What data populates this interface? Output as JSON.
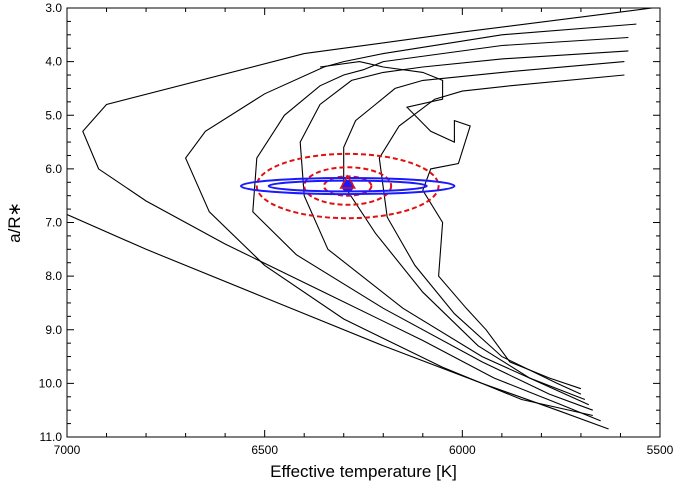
{
  "chart_data": {
    "type": "line",
    "title": "",
    "xlabel": "Effective temperature [K]",
    "ylabel": "a/R∗",
    "xlim": [
      7000,
      5500
    ],
    "ylim": [
      3.0,
      11.0
    ],
    "x_inverted": true,
    "y_inverted": true,
    "xticks": [
      "7000",
      "6500",
      "6000",
      "5500"
    ],
    "yticks": [
      "3.0",
      "4.0",
      "5.0",
      "6.0",
      "7.0",
      "8.0",
      "9.0",
      "10.0",
      "11.0"
    ],
    "grid": false,
    "colors": {
      "tracks": "#000000",
      "ellipse_inner": "#1a1aff",
      "ellipse_outer": "#e01010",
      "point": "#1a1aff"
    },
    "series": [
      {
        "points": [
          [
            7000,
            6.85
          ],
          [
            6800,
            7.5
          ],
          [
            6500,
            8.4
          ],
          [
            6200,
            9.3
          ],
          [
            5950,
            10.0
          ],
          [
            5760,
            10.5
          ],
          [
            5630,
            10.85
          ]
        ]
      },
      {
        "points": [
          [
            5520,
            3.0
          ],
          [
            6000,
            3.45
          ],
          [
            6400,
            3.85
          ],
          [
            6900,
            4.8
          ],
          [
            6960,
            5.3
          ],
          [
            6920,
            6.0
          ],
          [
            6800,
            6.6
          ],
          [
            6600,
            7.4
          ],
          [
            6350,
            8.3
          ],
          [
            6100,
            9.2
          ],
          [
            5920,
            9.9
          ],
          [
            5750,
            10.4
          ],
          [
            5650,
            10.7
          ]
        ]
      },
      {
        "points": [
          [
            5560,
            3.3
          ],
          [
            5900,
            3.5
          ],
          [
            6200,
            3.85
          ],
          [
            6300,
            4.0
          ],
          [
            6350,
            4.1
          ],
          [
            6500,
            4.6
          ],
          [
            6650,
            5.3
          ],
          [
            6700,
            5.8
          ],
          [
            6640,
            6.8
          ],
          [
            6500,
            7.8
          ],
          [
            6300,
            8.8
          ],
          [
            6050,
            9.7
          ],
          [
            5850,
            10.3
          ],
          [
            5670,
            10.6
          ]
        ]
      },
      {
        "points": [
          [
            5580,
            3.55
          ],
          [
            5900,
            3.7
          ],
          [
            6200,
            4.0
          ],
          [
            6250,
            4.15
          ],
          [
            6300,
            4.25
          ],
          [
            6360,
            4.45
          ],
          [
            6450,
            5.0
          ],
          [
            6520,
            5.8
          ],
          [
            6530,
            6.8
          ],
          [
            6420,
            7.6
          ],
          [
            6200,
            8.6
          ],
          [
            5950,
            9.6
          ],
          [
            5780,
            10.2
          ],
          [
            5670,
            10.5
          ]
        ]
      },
      {
        "points": [
          [
            5580,
            3.8
          ],
          [
            5900,
            3.95
          ],
          [
            6100,
            4.1
          ],
          [
            6200,
            4.2
          ],
          [
            6280,
            4.35
          ],
          [
            6360,
            4.8
          ],
          [
            6410,
            5.5
          ],
          [
            6400,
            6.5
          ],
          [
            6340,
            7.5
          ],
          [
            6150,
            8.6
          ],
          [
            5950,
            9.5
          ],
          [
            5800,
            10.0
          ],
          [
            5680,
            10.4
          ]
        ]
      },
      {
        "points": [
          [
            5590,
            4.0
          ],
          [
            5900,
            4.2
          ],
          [
            6100,
            4.35
          ],
          [
            6170,
            4.5
          ],
          [
            6220,
            4.8
          ],
          [
            6270,
            5.1
          ],
          [
            6300,
            5.6
          ],
          [
            6300,
            6.3
          ],
          [
            6220,
            7.2
          ],
          [
            6100,
            8.3
          ],
          [
            5960,
            9.3
          ],
          [
            5830,
            9.9
          ],
          [
            5690,
            10.3
          ]
        ]
      },
      {
        "points": [
          [
            5590,
            4.25
          ],
          [
            5880,
            4.45
          ],
          [
            6000,
            4.55
          ],
          [
            6070,
            4.7
          ],
          [
            6160,
            5.2
          ],
          [
            6210,
            5.8
          ],
          [
            6190,
            6.9
          ],
          [
            6120,
            7.8
          ],
          [
            6020,
            8.7
          ],
          [
            5900,
            9.5
          ],
          [
            5760,
            10.0
          ],
          [
            5700,
            10.2
          ]
        ]
      },
      {
        "points": [
          [
            6360,
            4.1
          ],
          [
            6260,
            4.0
          ],
          [
            6200,
            4.1
          ],
          [
            6100,
            4.2
          ],
          [
            6050,
            4.35
          ],
          [
            6050,
            4.7
          ],
          [
            6140,
            4.85
          ],
          [
            6080,
            5.3
          ],
          [
            6020,
            5.5
          ],
          [
            6020,
            5.1
          ],
          [
            5980,
            5.2
          ],
          [
            6010,
            5.9
          ],
          [
            6080,
            6.0
          ],
          [
            6100,
            6.4
          ],
          [
            6050,
            7.0
          ],
          [
            6060,
            8.0
          ],
          [
            5990,
            8.6
          ],
          [
            5940,
            9.0
          ],
          [
            5880,
            9.6
          ],
          [
            5780,
            9.9
          ],
          [
            5700,
            10.1
          ]
        ]
      }
    ],
    "measurement": {
      "teff": 6290,
      "a_over_rstar": 6.32,
      "inner_ellipses": [
        [
          270,
          0.15
        ],
        [
          200,
          0.1
        ]
      ],
      "outer_ellipses": [
        [
          230,
          0.6
        ],
        [
          110,
          0.35
        ],
        [
          60,
          0.18
        ]
      ]
    }
  }
}
